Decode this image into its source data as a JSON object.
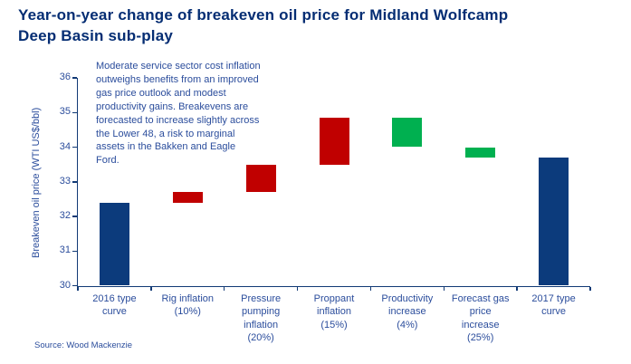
{
  "title": {
    "line1": "Year-on-year change of breakeven oil price for Midland Wolfcamp",
    "line2": "Deep Basin sub-play",
    "full": "Year-on-year change of breakeven oil price for Midland Wolfcamp Deep Basin sub-play"
  },
  "annotation": {
    "text": "Moderate service sector cost inflation outweighs benefits from an improved gas price outlook and modest productivity gains. Breakevens are forecasted to increase slightly across the Lower 48, a risk to marginal assets in the Bakken and Eagle Ford.",
    "text_multiline": "Moderate service sector cost inflation\noutweighs benefits from an improved\ngas price outlook and modest\nproductivity gains. Breakevens are\nforecasted to increase slightly across\nthe Lower 48, a risk to marginal\nassets  in the Bakken and Eagle\nFord."
  },
  "source": "Source: Wood Mackenzie",
  "colors": {
    "title_text": "#042d73",
    "body_text": "#2b4d9c",
    "axis": "#123a75",
    "total_bar": "#0c3b7c",
    "increase_bar": "#c00000",
    "decrease_bar": "#00b050",
    "background": "#ffffff"
  },
  "chart_data": {
    "type": "bar",
    "subtype": "waterfall",
    "title": "Year-on-year change of breakeven oil price for Midland Wolfcamp Deep Basin sub-play",
    "xlabel": "",
    "ylabel": "Breakeven oil price (WTI US$/bbl)",
    "ylim": [
      30,
      36
    ],
    "ytick_step": 1,
    "ytick_labels": [
      "30",
      "31",
      "32",
      "33",
      "34",
      "35",
      "36"
    ],
    "grid": false,
    "legend": false,
    "categories": [
      "2016 type curve",
      "Rig inflation (10%)",
      "Pressure pumping inflation (20%)",
      "Proppant inflation (15%)",
      "Productivity increase (4%)",
      "Forecast gas price increase (25%)",
      "2017 type curve"
    ],
    "bars": [
      {
        "label": "2016 type curve",
        "label_lines": [
          "2016 type",
          "curve"
        ],
        "start": 30,
        "end": 32.4,
        "role": "total"
      },
      {
        "label": "Rig inflation (10%)",
        "label_lines": [
          "Rig inflation",
          "(10%)"
        ],
        "start": 32.4,
        "end": 32.7,
        "role": "increase"
      },
      {
        "label": "Pressure pumping inflation (20%)",
        "label_lines": [
          "Pressure",
          "pumping",
          "inflation",
          "(20%)"
        ],
        "start": 32.7,
        "end": 33.5,
        "role": "increase"
      },
      {
        "label": "Proppant inflation (15%)",
        "label_lines": [
          "Proppant",
          "inflation",
          "(15%)"
        ],
        "start": 33.5,
        "end": 34.85,
        "role": "increase"
      },
      {
        "label": "Productivity increase (4%)",
        "label_lines": [
          "Productivity",
          "increase",
          "(4%)"
        ],
        "start": 34.85,
        "end": 34.0,
        "role": "decrease"
      },
      {
        "label": "Forecast gas price increase (25%)",
        "label_lines": [
          "Forecast gas",
          "price",
          "increase",
          "(25%)"
        ],
        "start": 34.0,
        "end": 33.7,
        "role": "decrease"
      },
      {
        "label": "2017 type curve",
        "label_lines": [
          "2017 type",
          "curve"
        ],
        "start": 30,
        "end": 33.7,
        "role": "total"
      }
    ]
  }
}
